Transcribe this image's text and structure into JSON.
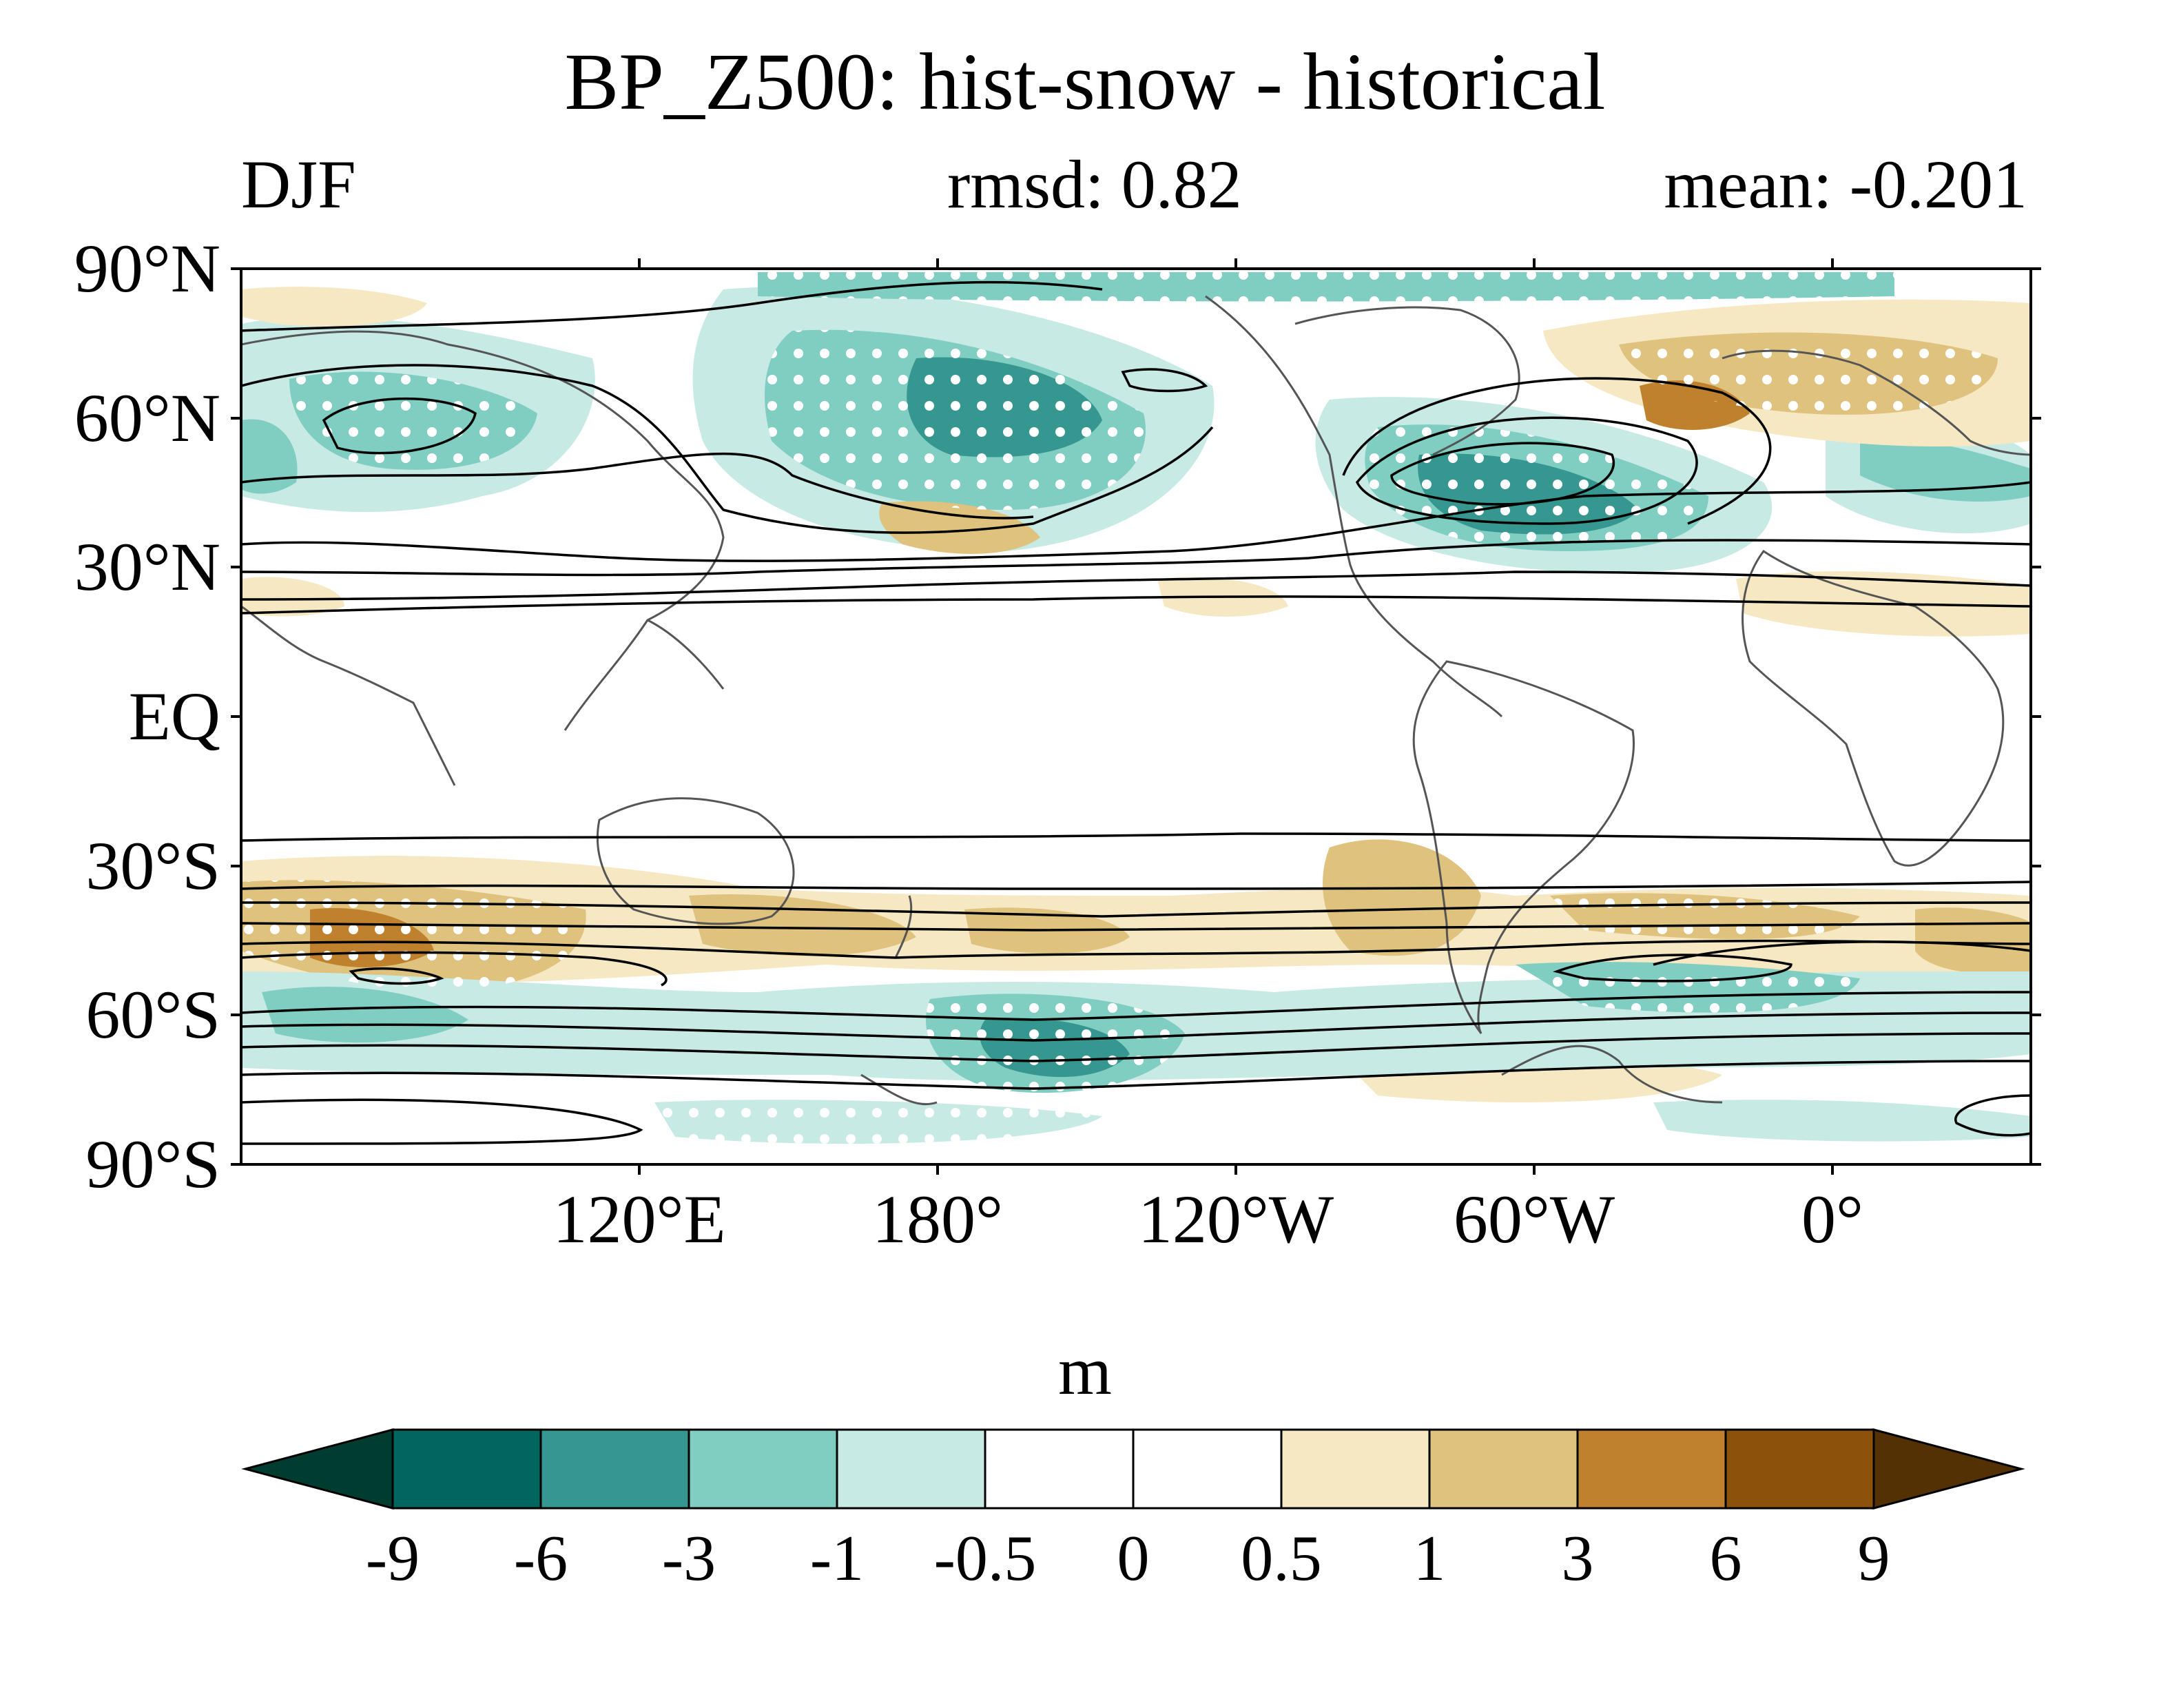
{
  "title": "BP_Z500: hist-snow - historical",
  "season": "DJF",
  "rmsd": "rmsd: 0.82",
  "mean": "mean: -0.201",
  "units": "m",
  "lat_labels": [
    "90°N",
    "60°N",
    "30°N",
    "EQ",
    "30°S",
    "60°S",
    "90°S"
  ],
  "lon_labels": [
    "120°E",
    "180°",
    "120°W",
    "60°W",
    "0°"
  ],
  "colorbar": {
    "labels": [
      "-9",
      "-6",
      "-3",
      "-1",
      "-0.5",
      "0",
      "0.5",
      "1",
      "3",
      "6",
      "9"
    ],
    "colors": [
      "#003c30",
      "#01665e",
      "#35978f",
      "#80cdc1",
      "#c7eae5",
      "#ffffff",
      "#ffffff",
      "#f6e8c3",
      "#dfc27d",
      "#bf812d",
      "#8c510a",
      "#543005"
    ]
  },
  "chart_data": {
    "type": "heatmap",
    "title": "BP_Z500: hist-snow - historical",
    "season": "DJF",
    "rmsd": 0.82,
    "mean": -0.201,
    "units": "m",
    "lat_range": [
      -90,
      90
    ],
    "lon_range": [
      40,
      400
    ],
    "lat_ticks": [
      90,
      60,
      30,
      0,
      -30,
      -60,
      -90
    ],
    "lon_ticks": [
      120,
      180,
      240,
      300,
      360
    ],
    "levels": [
      -9,
      -6,
      -3,
      -1,
      -0.5,
      0,
      0.5,
      1,
      3,
      6,
      9
    ],
    "stippling": "significant regions",
    "contours": "climatology overlay"
  }
}
